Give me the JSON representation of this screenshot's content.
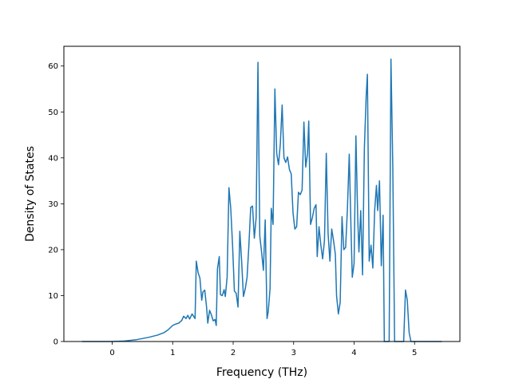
{
  "chart_data": {
    "type": "line",
    "title": "",
    "xlabel": "Frequency (THz)",
    "ylabel": "Density of States",
    "xlim": [
      -0.8,
      5.75
    ],
    "ylim": [
      0,
      64.3
    ],
    "xticks": [
      0,
      1,
      2,
      3,
      4,
      5
    ],
    "yticks": [
      0,
      10,
      20,
      30,
      40,
      50,
      60
    ],
    "grid": false,
    "legend": "none",
    "series": [
      {
        "color": "#1f77b4",
        "points": [
          [
            -0.5,
            0.0
          ],
          [
            0.0,
            0.0
          ],
          [
            0.2,
            0.1
          ],
          [
            0.4,
            0.4
          ],
          [
            0.6,
            0.9
          ],
          [
            0.75,
            1.4
          ],
          [
            0.85,
            1.9
          ],
          [
            0.92,
            2.5
          ],
          [
            1.0,
            3.5
          ],
          [
            1.05,
            3.8
          ],
          [
            1.1,
            4.0
          ],
          [
            1.15,
            4.6
          ],
          [
            1.18,
            5.5
          ],
          [
            1.22,
            5.0
          ],
          [
            1.25,
            5.7
          ],
          [
            1.28,
            4.9
          ],
          [
            1.32,
            6.0
          ],
          [
            1.35,
            5.4
          ],
          [
            1.37,
            5.0
          ],
          [
            1.39,
            17.5
          ],
          [
            1.42,
            15.0
          ],
          [
            1.45,
            13.8
          ],
          [
            1.48,
            9.0
          ],
          [
            1.5,
            10.8
          ],
          [
            1.53,
            11.2
          ],
          [
            1.56,
            7.5
          ],
          [
            1.58,
            4.0
          ],
          [
            1.61,
            6.8
          ],
          [
            1.64,
            5.8
          ],
          [
            1.67,
            4.5
          ],
          [
            1.7,
            4.8
          ],
          [
            1.72,
            3.5
          ],
          [
            1.74,
            15.8
          ],
          [
            1.77,
            18.5
          ],
          [
            1.79,
            10.2
          ],
          [
            1.82,
            10.0
          ],
          [
            1.85,
            11.3
          ],
          [
            1.87,
            9.8
          ],
          [
            1.9,
            14.0
          ],
          [
            1.93,
            33.5
          ],
          [
            1.96,
            29.0
          ],
          [
            1.99,
            21.0
          ],
          [
            2.02,
            11.0
          ],
          [
            2.05,
            10.5
          ],
          [
            2.08,
            7.5
          ],
          [
            2.11,
            24.0
          ],
          [
            2.14,
            17.5
          ],
          [
            2.17,
            9.8
          ],
          [
            2.2,
            11.5
          ],
          [
            2.23,
            14.0
          ],
          [
            2.26,
            21.0
          ],
          [
            2.29,
            29.2
          ],
          [
            2.32,
            29.5
          ],
          [
            2.35,
            22.5
          ],
          [
            2.38,
            27.0
          ],
          [
            2.41,
            60.8
          ],
          [
            2.44,
            23.0
          ],
          [
            2.47,
            19.5
          ],
          [
            2.5,
            15.5
          ],
          [
            2.53,
            26.5
          ],
          [
            2.56,
            5.0
          ],
          [
            2.58,
            6.5
          ],
          [
            2.61,
            11.5
          ],
          [
            2.63,
            29.0
          ],
          [
            2.66,
            25.5
          ],
          [
            2.69,
            55.0
          ],
          [
            2.72,
            41.0
          ],
          [
            2.75,
            38.5
          ],
          [
            2.78,
            43.0
          ],
          [
            2.81,
            51.5
          ],
          [
            2.84,
            40.0
          ],
          [
            2.87,
            39.0
          ],
          [
            2.9,
            40.2
          ],
          [
            2.93,
            37.5
          ],
          [
            2.96,
            36.5
          ],
          [
            2.99,
            28.0
          ],
          [
            3.02,
            24.5
          ],
          [
            3.05,
            25.0
          ],
          [
            3.08,
            32.5
          ],
          [
            3.11,
            32.0
          ],
          [
            3.14,
            33.0
          ],
          [
            3.17,
            47.8
          ],
          [
            3.2,
            38.0
          ],
          [
            3.23,
            41.0
          ],
          [
            3.25,
            48.0
          ],
          [
            3.28,
            25.5
          ],
          [
            3.31,
            27.0
          ],
          [
            3.34,
            29.0
          ],
          [
            3.37,
            29.8
          ],
          [
            3.39,
            18.5
          ],
          [
            3.42,
            25.0
          ],
          [
            3.45,
            21.0
          ],
          [
            3.48,
            18.0
          ],
          [
            3.51,
            22.0
          ],
          [
            3.54,
            41.0
          ],
          [
            3.57,
            23.5
          ],
          [
            3.6,
            17.5
          ],
          [
            3.63,
            24.5
          ],
          [
            3.66,
            22.0
          ],
          [
            3.69,
            19.0
          ],
          [
            3.71,
            10.0
          ],
          [
            3.74,
            6.0
          ],
          [
            3.77,
            8.5
          ],
          [
            3.8,
            27.2
          ],
          [
            3.83,
            20.0
          ],
          [
            3.86,
            20.5
          ],
          [
            3.89,
            29.0
          ],
          [
            3.92,
            40.8
          ],
          [
            3.95,
            24.0
          ],
          [
            3.97,
            14.0
          ],
          [
            4.0,
            17.0
          ],
          [
            4.03,
            44.8
          ],
          [
            4.06,
            27.0
          ],
          [
            4.08,
            19.5
          ],
          [
            4.11,
            28.5
          ],
          [
            4.14,
            14.5
          ],
          [
            4.17,
            42.0
          ],
          [
            4.2,
            53.5
          ],
          [
            4.22,
            58.2
          ],
          [
            4.25,
            17.5
          ],
          [
            4.28,
            21.0
          ],
          [
            4.31,
            16.0
          ],
          [
            4.34,
            28.5
          ],
          [
            4.37,
            34.0
          ],
          [
            4.39,
            28.5
          ],
          [
            4.42,
            35.0
          ],
          [
            4.45,
            16.5
          ],
          [
            4.48,
            27.5
          ],
          [
            4.5,
            0.0
          ],
          [
            4.58,
            0.0
          ],
          [
            4.61,
            61.5
          ],
          [
            4.64,
            38.0
          ],
          [
            4.67,
            0.0
          ],
          [
            4.82,
            0.0
          ],
          [
            4.85,
            11.2
          ],
          [
            4.88,
            9.0
          ],
          [
            4.91,
            2.0
          ],
          [
            4.94,
            0.0
          ],
          [
            5.45,
            0.0
          ]
        ]
      }
    ]
  }
}
